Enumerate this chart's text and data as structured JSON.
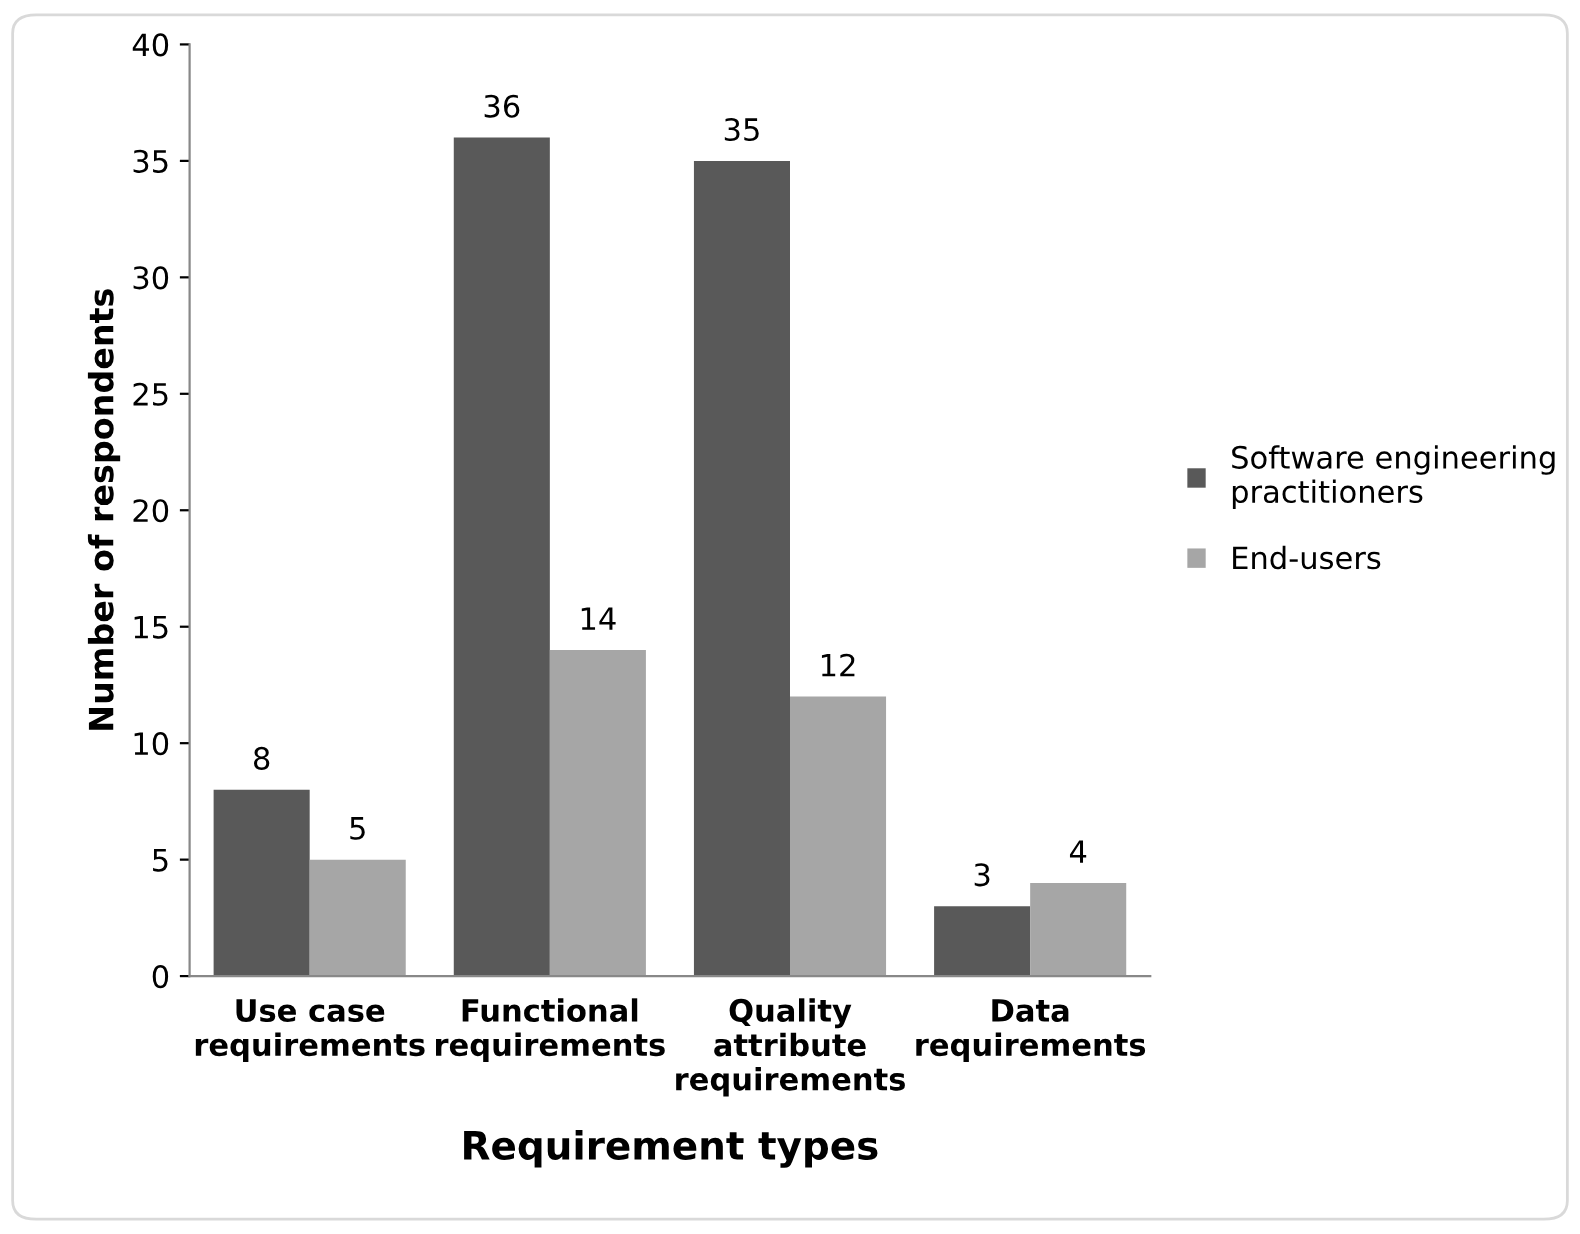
{
  "chart_data": {
    "type": "bar",
    "xlabel": "Requirement types",
    "ylabel": "Number of respondents",
    "categories": [
      "Use case\nrequirements",
      "Functional\nrequirements",
      "Quality\nattribute\nrequirements",
      "Data\nrequirements"
    ],
    "series": [
      {
        "name": "Software engineering\npractitioners",
        "color": "#595959",
        "values": [
          8,
          36,
          35,
          3
        ]
      },
      {
        "name": "End-users",
        "color": "#a6a6a6",
        "values": [
          5,
          14,
          12,
          4
        ]
      }
    ],
    "ylim": [
      0,
      40
    ],
    "yticks": [
      0,
      5,
      10,
      15,
      20,
      25,
      30,
      35,
      40
    ],
    "data_labels": true,
    "grid": false,
    "legend": "right"
  }
}
